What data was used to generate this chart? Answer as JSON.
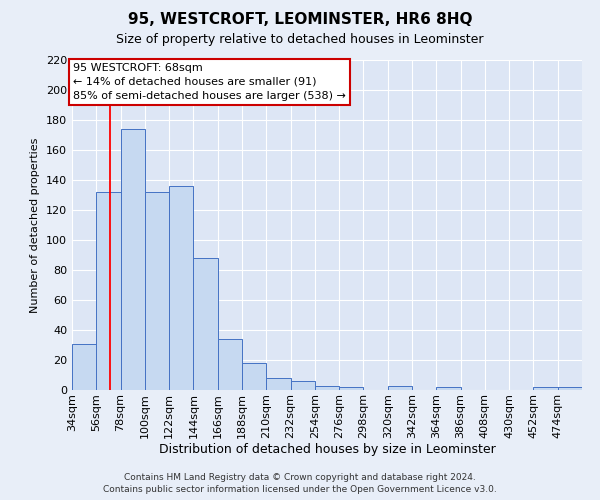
{
  "title": "95, WESTCROFT, LEOMINSTER, HR6 8HQ",
  "subtitle": "Size of property relative to detached houses in Leominster",
  "xlabel": "Distribution of detached houses by size in Leominster",
  "ylabel": "Number of detached properties",
  "footer_line1": "Contains HM Land Registry data © Crown copyright and database right 2024.",
  "footer_line2": "Contains public sector information licensed under the Open Government Licence v3.0.",
  "bin_labels": [
    "34sqm",
    "56sqm",
    "78sqm",
    "100sqm",
    "122sqm",
    "144sqm",
    "166sqm",
    "188sqm",
    "210sqm",
    "232sqm",
    "254sqm",
    "276sqm",
    "298sqm",
    "320sqm",
    "342sqm",
    "364sqm",
    "386sqm",
    "408sqm",
    "430sqm",
    "452sqm",
    "474sqm"
  ],
  "bin_edges": [
    34,
    56,
    78,
    100,
    122,
    144,
    166,
    188,
    210,
    232,
    254,
    276,
    298,
    320,
    342,
    364,
    386,
    408,
    430,
    452,
    474
  ],
  "bin_width": 22,
  "bar_heights": [
    31,
    132,
    174,
    132,
    136,
    88,
    34,
    18,
    8,
    6,
    3,
    2,
    0,
    3,
    0,
    2,
    0,
    0,
    0,
    2,
    2
  ],
  "bar_color": "#c6d9f1",
  "bar_edge_color": "#4472c4",
  "red_line_x": 68,
  "xlim_left": 34,
  "xlim_right": 496,
  "ylim": [
    0,
    220
  ],
  "yticks": [
    0,
    20,
    40,
    60,
    80,
    100,
    120,
    140,
    160,
    180,
    200,
    220
  ],
  "annotation_title": "95 WESTCROFT: 68sqm",
  "annotation_line1": "← 14% of detached houses are smaller (91)",
  "annotation_line2": "85% of semi-detached houses are larger (538) →",
  "annotation_box_facecolor": "#ffffff",
  "annotation_box_edgecolor": "#cc0000",
  "bg_color": "#e8eef8",
  "plot_bg_color": "#dde6f5",
  "grid_color": "#ffffff",
  "title_fontsize": 11,
  "subtitle_fontsize": 9,
  "xlabel_fontsize": 9,
  "ylabel_fontsize": 8,
  "tick_fontsize": 8,
  "ann_fontsize": 8,
  "footer_fontsize": 6.5
}
